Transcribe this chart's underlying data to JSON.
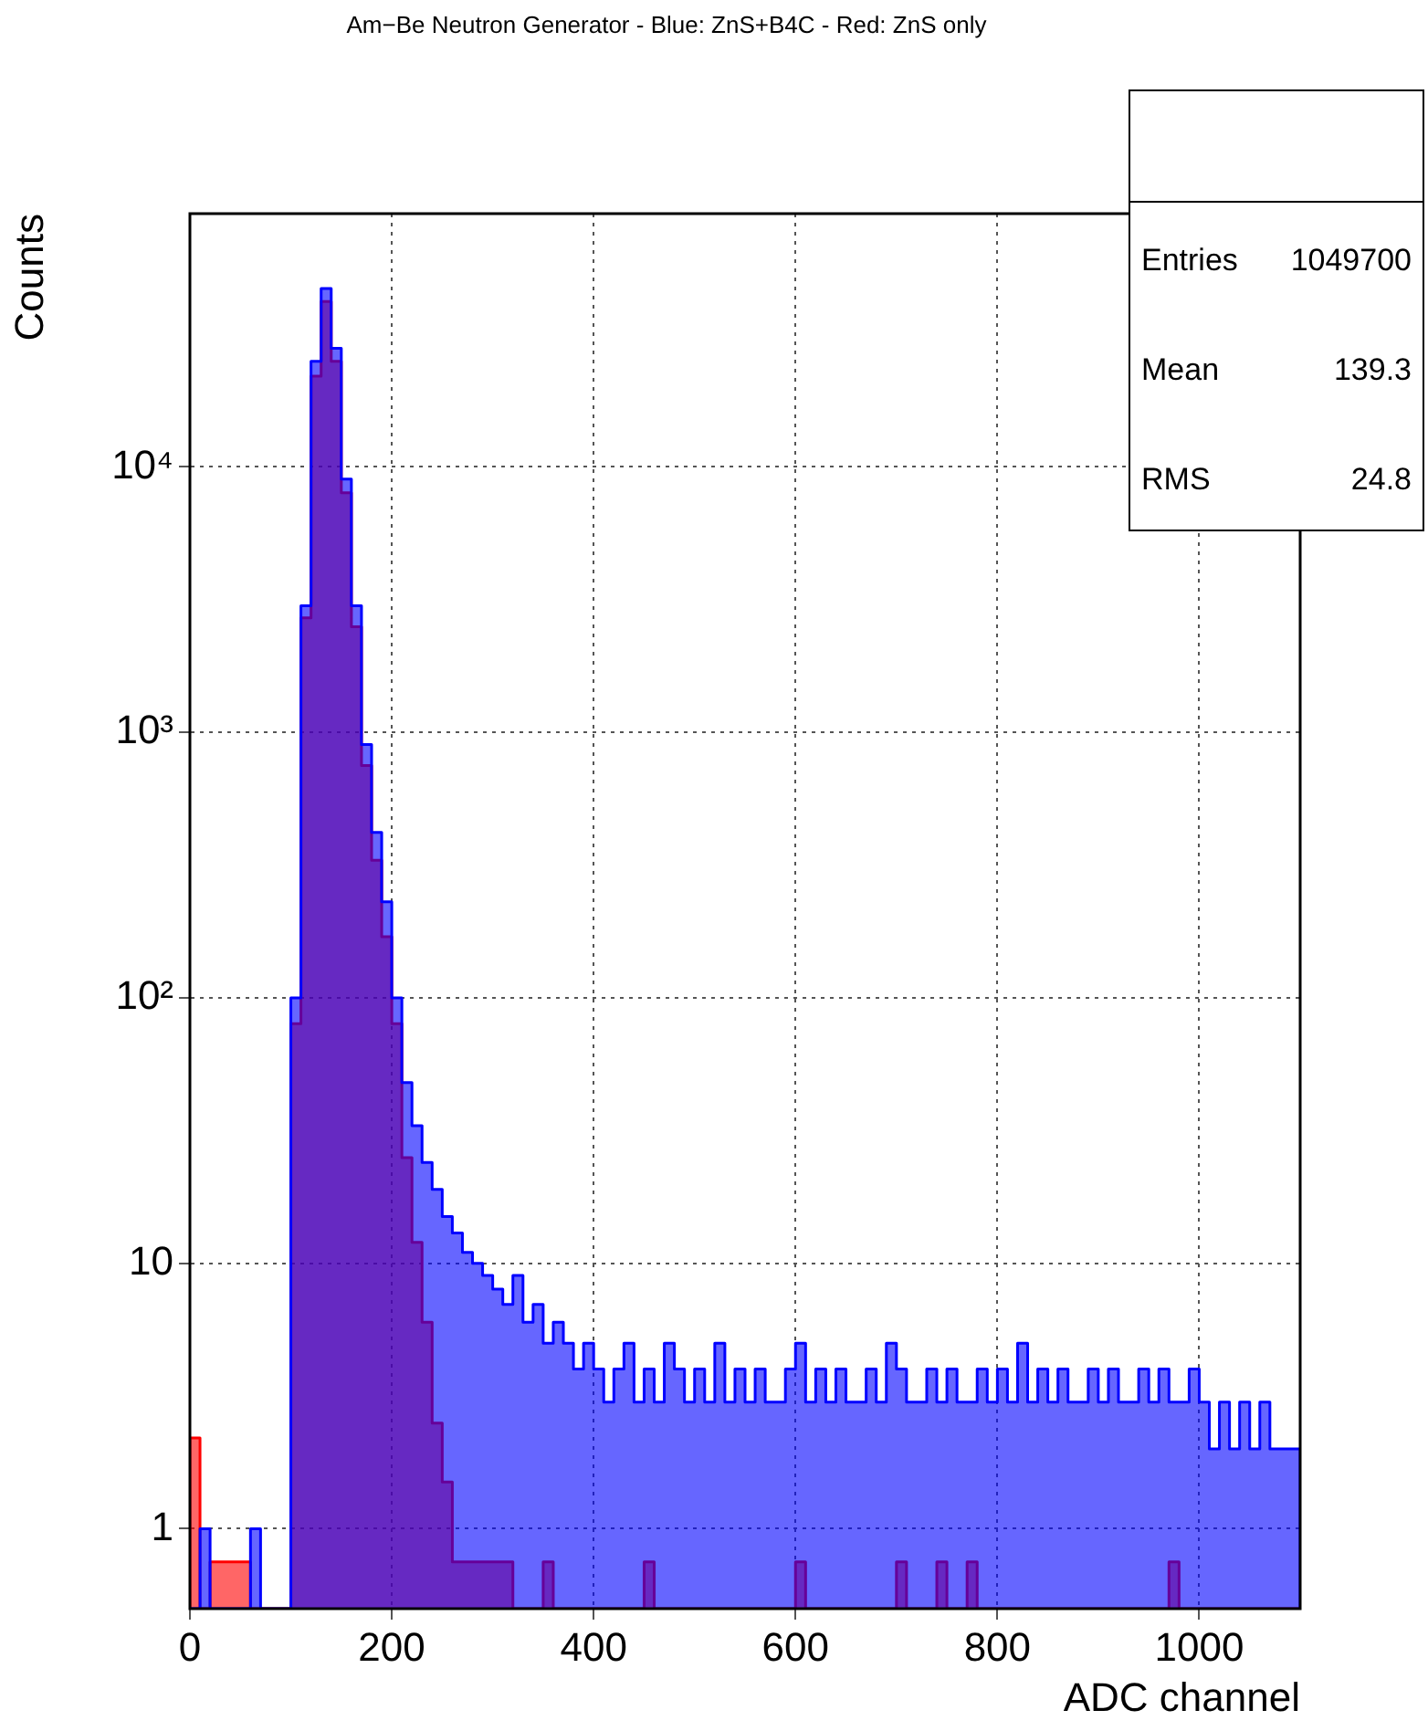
{
  "chart_data": {
    "type": "histogram",
    "title": "Am−Be Neutron Generator - Blue: ZnS+B4C - Red: ZnS only",
    "xlabel": "ADC channel",
    "ylabel": "Counts",
    "bins": [
      0,
      10,
      20,
      30,
      40,
      50,
      60,
      70,
      80,
      90,
      100,
      110,
      120,
      130,
      140,
      150,
      160,
      170,
      180,
      190,
      200,
      210,
      220,
      230,
      240,
      250,
      260,
      270,
      280,
      290,
      300,
      310,
      320,
      330,
      340,
      350,
      360,
      370,
      380,
      390,
      400,
      410,
      420,
      430,
      440,
      450,
      460,
      470,
      480,
      490,
      500,
      510,
      520,
      530,
      540,
      550,
      560,
      570,
      580,
      590,
      600,
      610,
      620,
      630,
      640,
      650,
      660,
      670,
      680,
      690,
      700,
      710,
      720,
      730,
      740,
      750,
      760,
      770,
      780,
      790,
      800,
      810,
      820,
      830,
      840,
      850,
      860,
      870,
      880,
      890,
      900,
      910,
      920,
      930,
      940,
      950,
      960,
      970,
      980,
      990,
      1000,
      1010,
      1020,
      1030,
      1040,
      1050,
      1060,
      1070,
      1080,
      1090,
      1100
    ],
    "series": [
      {
        "color": "#0000ff",
        "values": [
          null,
          1,
          null,
          null,
          null,
          null,
          1,
          null,
          null,
          null,
          100,
          3000,
          25000,
          47000,
          28000,
          9000,
          3000,
          900,
          420,
          230,
          100,
          48,
          33,
          24,
          19,
          15,
          13,
          11,
          10,
          9,
          8,
          7,
          9,
          6,
          7,
          5,
          6,
          5,
          4,
          5,
          4,
          3,
          4,
          5,
          3,
          4,
          3,
          5,
          4,
          3,
          4,
          3,
          5,
          3,
          4,
          3,
          4,
          3,
          3,
          4,
          5,
          3,
          4,
          3,
          4,
          3,
          3,
          4,
          3,
          5,
          4,
          3,
          3,
          4,
          3,
          4,
          3,
          3,
          4,
          3,
          4,
          3,
          5,
          3,
          4,
          3,
          4,
          3,
          3,
          4,
          3,
          4,
          3,
          3,
          4,
          3,
          4,
          3,
          3,
          4,
          3,
          2,
          3,
          2,
          3,
          2,
          3,
          2,
          2,
          2
        ]
      },
      {
        "color": "#ff0000",
        "values": [
          2.2,
          null,
          0.75,
          0.75,
          0.75,
          0.75,
          null,
          null,
          null,
          null,
          80,
          2700,
          22000,
          42000,
          25000,
          8000,
          2500,
          750,
          330,
          170,
          80,
          25,
          12,
          6,
          2.5,
          1.5,
          0.75,
          0.75,
          0.75,
          0.75,
          0.75,
          0.75,
          null,
          null,
          null,
          0.75,
          null,
          null,
          null,
          null,
          null,
          null,
          null,
          null,
          null,
          0.75,
          null,
          null,
          null,
          null,
          null,
          null,
          null,
          null,
          null,
          null,
          null,
          null,
          null,
          null,
          0.75,
          null,
          null,
          null,
          null,
          null,
          null,
          null,
          null,
          null,
          0.75,
          null,
          null,
          null,
          0.75,
          null,
          null,
          0.75,
          null,
          null,
          null,
          null,
          null,
          null,
          null,
          null,
          null,
          null,
          null,
          null,
          null,
          null,
          null,
          null,
          null,
          null,
          null,
          0.75,
          null,
          null,
          null,
          null,
          null,
          null,
          null,
          null,
          null,
          null,
          null,
          null
        ]
      }
    ],
    "log": "y",
    "xlim": [
      0,
      1100
    ],
    "xticks": [
      0,
      200,
      400,
      600,
      800,
      1000
    ],
    "ylim": [
      0.5,
      90000
    ],
    "yticks": [
      {
        "value": 1,
        "label": "1"
      },
      {
        "value": 10,
        "label": "10"
      },
      {
        "value": 100,
        "label": "10²"
      },
      {
        "value": 1000,
        "label": "10³"
      },
      {
        "value": 10000,
        "label": "10⁴"
      }
    ],
    "grid": true,
    "line_style": "dotted",
    "legend": false,
    "annotations": [
      "Entries 1049700",
      "Mean 139.3",
      "RMS 24.8"
    ]
  }
}
